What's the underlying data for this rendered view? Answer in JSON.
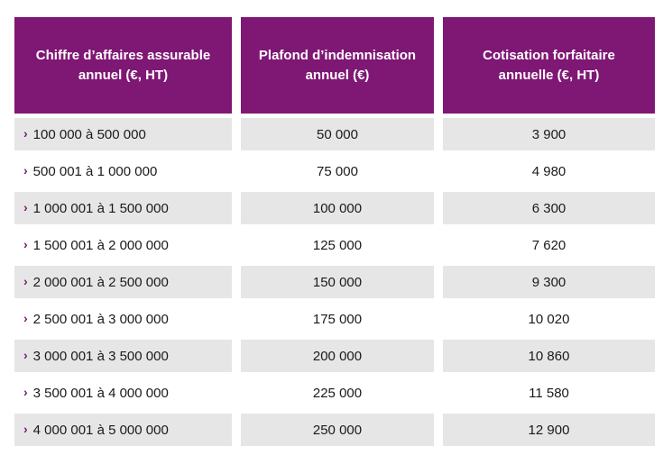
{
  "table": {
    "headers": [
      "Chiffre d’affaires assurable annuel (€, HT)",
      "Plafond d’indemnisation annuel (€)",
      "Cotisation forfaitaire annuelle (€, HT)"
    ],
    "row_marker_icon": "chevron-right-icon",
    "accent_color": "#7f1774",
    "rows": [
      {
        "range": "100 000 à 500 000",
        "plafond": "50 000",
        "cotisation": "3 900"
      },
      {
        "range": "500 001 à 1 000 000",
        "plafond": "75 000",
        "cotisation": "4 980"
      },
      {
        "range": "1 000 001 à 1 500 000",
        "plafond": "100 000",
        "cotisation": "6 300"
      },
      {
        "range": "1 500 001 à 2 000 000",
        "plafond": "125 000",
        "cotisation": "7 620"
      },
      {
        "range": "2 000 001 à 2 500 000",
        "plafond": "150 000",
        "cotisation": "9 300"
      },
      {
        "range": "2 500 001 à 3 000 000",
        "plafond": "175 000",
        "cotisation": "10 020"
      },
      {
        "range": "3 000 001 à 3 500 000",
        "plafond": "200 000",
        "cotisation": "10 860"
      },
      {
        "range": "3 500 001 à 4 000 000",
        "plafond": "225 000",
        "cotisation": "11 580"
      },
      {
        "range": "4 000 001 à 5 000 000",
        "plafond": "250 000",
        "cotisation": "12 900"
      }
    ]
  }
}
